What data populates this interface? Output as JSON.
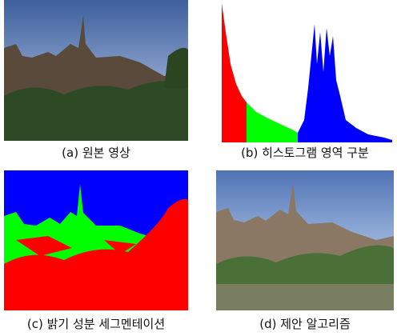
{
  "panels": [
    {
      "caption": "(a) 원본 영상"
    },
    {
      "caption": "(b) 히스토그램 영역 구분"
    },
    {
      "caption": "(c) 밝기 성분 세그멘테이션"
    },
    {
      "caption": "(d) 제안 알고리즘"
    }
  ]
}
